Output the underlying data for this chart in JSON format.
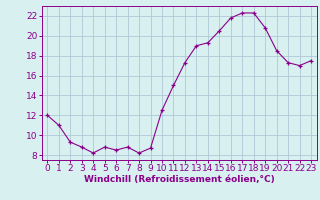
{
  "x": [
    0,
    1,
    2,
    3,
    4,
    5,
    6,
    7,
    8,
    9,
    10,
    11,
    12,
    13,
    14,
    15,
    16,
    17,
    18,
    19,
    20,
    21,
    22,
    23
  ],
  "y": [
    12,
    11,
    9.3,
    8.8,
    8.2,
    8.8,
    8.5,
    8.8,
    8.2,
    8.7,
    12.5,
    15.0,
    17.3,
    19.0,
    19.3,
    20.5,
    21.8,
    22.3,
    22.3,
    20.8,
    18.5,
    17.3,
    17.0,
    17.5
  ],
  "line_color": "#8b008b",
  "marker": "+",
  "marker_color": "#8b008b",
  "bg_color": "#d8f0f0",
  "grid_color": "#b0c8d8",
  "tick_color": "#8b008b",
  "xlabel": "Windchill (Refroidissement éolien,°C)",
  "xlabel_color": "#8b008b",
  "ylim": [
    7.5,
    23
  ],
  "yticks": [
    8,
    10,
    12,
    14,
    16,
    18,
    20,
    22
  ],
  "xticks": [
    0,
    1,
    2,
    3,
    4,
    5,
    6,
    7,
    8,
    9,
    10,
    11,
    12,
    13,
    14,
    15,
    16,
    17,
    18,
    19,
    20,
    21,
    22,
    23
  ],
  "font_size": 6.5,
  "xlabel_fontsize": 6.5
}
